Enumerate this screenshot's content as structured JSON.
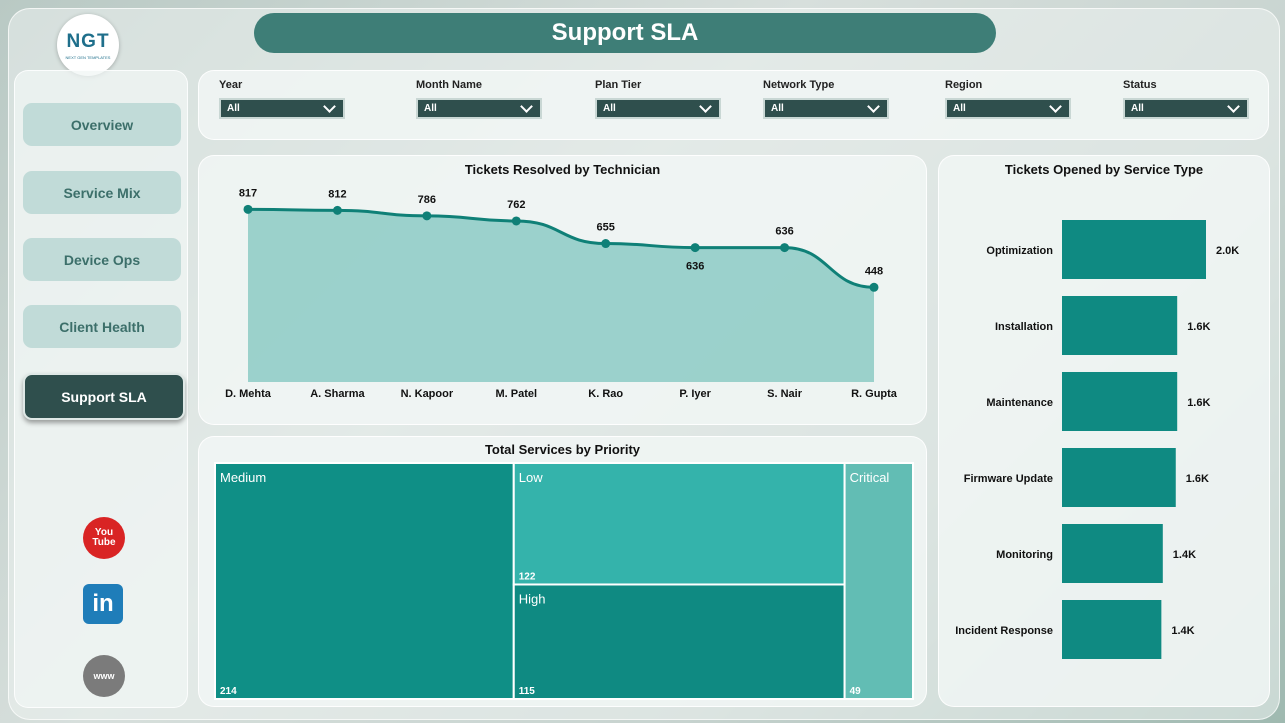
{
  "header": {
    "title": "Support SLA",
    "logo_text": "NGT",
    "logo_sub": "NEXT GEN TEMPLATES"
  },
  "sidebar": {
    "items": [
      {
        "label": "Overview",
        "active": false
      },
      {
        "label": "Service Mix",
        "active": false
      },
      {
        "label": "Device Ops",
        "active": false
      },
      {
        "label": "Client Health",
        "active": false
      },
      {
        "label": "Support SLA",
        "active": true
      }
    ],
    "social": [
      {
        "icon": "youtube-icon",
        "label": "You Tube"
      },
      {
        "icon": "linkedin-icon",
        "label": "in"
      },
      {
        "icon": "web-globe-icon",
        "label": "www"
      }
    ]
  },
  "filters": [
    {
      "label": "Year",
      "value": "All"
    },
    {
      "label": "Month Name",
      "value": "All"
    },
    {
      "label": "Plan Tier",
      "value": "All"
    },
    {
      "label": "Network Type",
      "value": "All"
    },
    {
      "label": "Region",
      "value": "All"
    },
    {
      "label": "Status",
      "value": "All"
    }
  ],
  "colors": {
    "accent": "#2f4f4d",
    "teal": "#0f8a82",
    "teal_light": "#34b3ab",
    "teal_pale": "#62bdb4",
    "title_bar": "#3e7e77"
  },
  "chart_data": [
    {
      "type": "area",
      "title": "Tickets Resolved by Technician",
      "categories": [
        "D. Mehta",
        "A. Sharma",
        "N. Kapoor",
        "M. Patel",
        "K. Rao",
        "P. Iyer",
        "S. Nair",
        "R. Gupta"
      ],
      "values": [
        817,
        812,
        786,
        762,
        655,
        636,
        636,
        448
      ],
      "labels": [
        "817",
        "812",
        "786",
        "762",
        "655",
        "636",
        "636",
        "448"
      ],
      "ylim": [
        0,
        880
      ]
    },
    {
      "type": "bar",
      "orientation": "horizontal",
      "title": "Tickets Opened by Service Type",
      "categories": [
        "Optimization",
        "Installation",
        "Maintenance",
        "Firmware Update",
        "Monitoring",
        "Incident Response"
      ],
      "values": [
        2000,
        1600,
        1600,
        1580,
        1400,
        1380
      ],
      "labels": [
        "2.0K",
        "1.6K",
        "1.6K",
        "1.6K",
        "1.4K",
        "1.4K"
      ]
    },
    {
      "type": "treemap",
      "title": "Total Services by Priority",
      "items": [
        {
          "name": "Medium",
          "value": 214,
          "color": "#0f8f86"
        },
        {
          "name": "Low",
          "value": 122,
          "color": "#34b3ab"
        },
        {
          "name": "High",
          "value": 115,
          "color": "#0f8a82"
        },
        {
          "name": "Critical",
          "value": 49,
          "color": "#62bdb4"
        }
      ]
    }
  ]
}
